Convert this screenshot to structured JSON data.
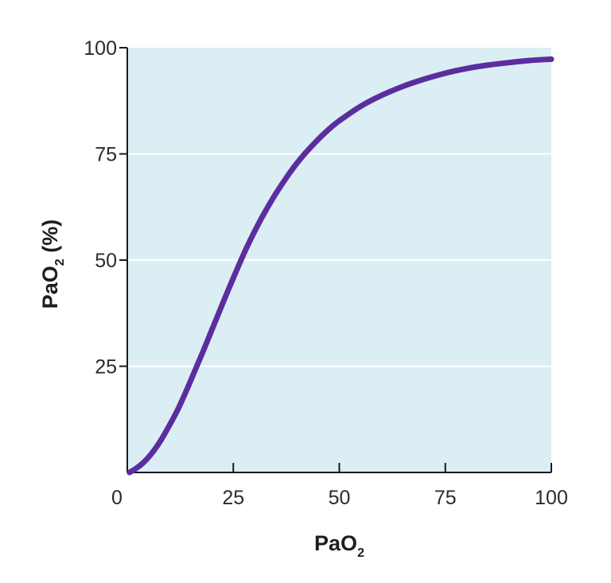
{
  "chart_data": {
    "type": "line",
    "xlabel": {
      "main": "PaO",
      "sub": "2",
      "rest": ""
    },
    "ylabel": {
      "main": "PaO",
      "sub": "2",
      "rest": " (%)"
    },
    "xlim": [
      0,
      100
    ],
    "ylim": [
      0,
      100
    ],
    "x_ticks": [
      "0",
      "25",
      "50",
      "75",
      "100"
    ],
    "y_ticks": [
      "25",
      "50",
      "75",
      "100"
    ],
    "grid": {
      "horizontal": true,
      "vertical": false
    },
    "colors": {
      "plot_background": "#dbeef4",
      "line": "#5b2d9e",
      "grid": "#ffffff",
      "axis": "#1a1a1a"
    },
    "series": [
      {
        "x": [
          0.5,
          2,
          4,
          6,
          8,
          10,
          12,
          14,
          16,
          18,
          20,
          22,
          24,
          26,
          28,
          30,
          32,
          35,
          38,
          40,
          42,
          45,
          48,
          50,
          55,
          60,
          65,
          70,
          75,
          80,
          85,
          90,
          95,
          100
        ],
        "y": [
          0,
          0.9,
          2.5,
          4.8,
          7.7,
          11.2,
          15.0,
          19.4,
          24.1,
          28.8,
          33.7,
          38.6,
          43.4,
          48.1,
          52.6,
          56.7,
          60.5,
          65.6,
          70.1,
          72.8,
          75.2,
          78.4,
          81.2,
          82.8,
          86.2,
          88.8,
          90.9,
          92.6,
          94.0,
          95.1,
          95.9,
          96.5,
          97.0,
          97.3
        ]
      }
    ]
  }
}
